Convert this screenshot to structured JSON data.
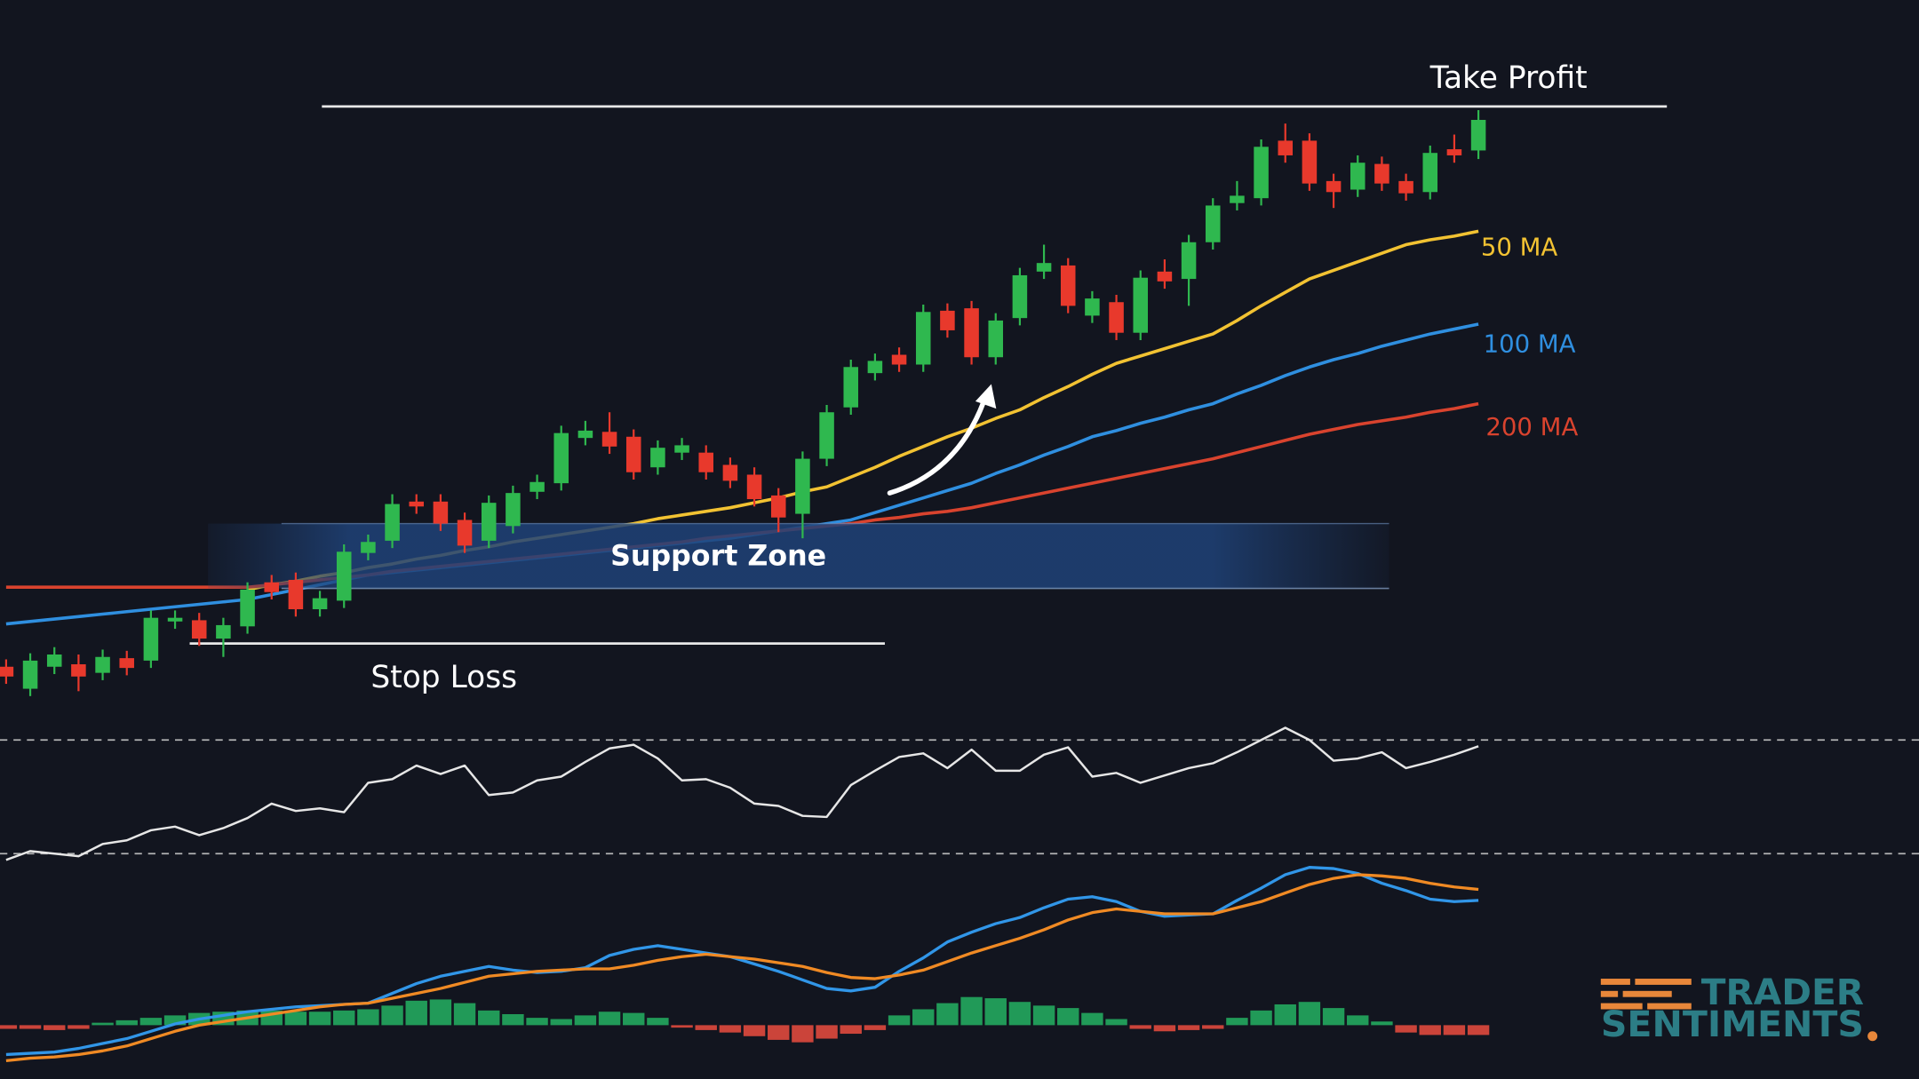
{
  "chart_data": [
    {
      "type": "candlestick",
      "categories": [
        null,
        null,
        null,
        null,
        null,
        null,
        null,
        null,
        null,
        null,
        null,
        null,
        null,
        null,
        null,
        null,
        null,
        null,
        null,
        null,
        null,
        null,
        null,
        null,
        null,
        null,
        null,
        null,
        null,
        null,
        null,
        null,
        null,
        null,
        null,
        null,
        null,
        null,
        null,
        null,
        null,
        null,
        null,
        null,
        null,
        null,
        null,
        null,
        null,
        null,
        null,
        null,
        null,
        null,
        null,
        null,
        null,
        null,
        null,
        null,
        null,
        null
      ],
      "open": [
        55,
        37,
        55,
        57,
        50,
        62,
        60,
        92,
        93,
        78,
        88,
        124,
        126,
        102,
        109,
        148,
        158,
        190,
        190,
        175,
        158,
        170,
        198,
        205,
        242,
        247,
        243,
        218,
        230,
        230,
        220,
        212,
        195,
        180,
        225,
        267,
        295,
        310,
        302,
        346,
        348,
        308,
        340,
        378,
        383,
        342,
        353,
        328,
        378,
        372,
        402,
        434,
        438,
        485,
        485,
        452,
        445,
        466,
        452,
        443,
        478,
        477
      ],
      "high": [
        61,
        66,
        71,
        65,
        69,
        68,
        101,
        101,
        99,
        95,
        124,
        130,
        132,
        117,
        155,
        163,
        196,
        196,
        196,
        181,
        195,
        203,
        212,
        252,
        256,
        263,
        249,
        240,
        242,
        236,
        226,
        218,
        201,
        231,
        269,
        306,
        311,
        316,
        351,
        352,
        354,
        344,
        381,
        400,
        389,
        362,
        359,
        379,
        388,
        408,
        438,
        452,
        486,
        499,
        491,
        458,
        473,
        472,
        458,
        481,
        490,
        510
      ],
      "low": [
        41,
        31,
        49,
        35,
        44,
        48,
        54,
        86,
        72,
        63,
        82,
        110,
        96,
        96,
        103,
        142,
        152,
        180,
        166,
        148,
        152,
        164,
        192,
        199,
        236,
        229,
        208,
        212,
        224,
        208,
        201,
        186,
        165,
        160,
        219,
        261,
        289,
        296,
        296,
        324,
        302,
        302,
        334,
        372,
        344,
        336,
        322,
        322,
        364,
        350,
        396,
        428,
        432,
        467,
        444,
        430,
        439,
        444,
        436,
        437,
        467,
        470
      ],
      "close": [
        47,
        60,
        65,
        47,
        63,
        54,
        95,
        95,
        78,
        89,
        118,
        116,
        102,
        111,
        149,
        157,
        188,
        186,
        172,
        154,
        189,
        197,
        206,
        246,
        248,
        235,
        214,
        234,
        236,
        214,
        207,
        192,
        177,
        225,
        263,
        300,
        305,
        302,
        345,
        330,
        308,
        338,
        375,
        385,
        350,
        356,
        328,
        373,
        370,
        402,
        432,
        440,
        480,
        473,
        450,
        443,
        467,
        450,
        442,
        475,
        473,
        502
      ],
      "up_color": "#2fb84f",
      "down_color": "#e8392c",
      "ylim": [
        0,
        600
      ],
      "series": [
        {
          "name": "50 MA",
          "color": "#f2c232",
          "values": [
            null,
            null,
            null,
            null,
            null,
            null,
            null,
            null,
            null,
            null,
            118,
            122,
            125,
            129,
            132,
            136,
            139,
            143,
            146,
            150,
            153,
            157,
            160,
            163,
            166,
            169,
            172,
            176,
            179,
            182,
            185,
            189,
            193,
            198,
            202,
            210,
            218,
            227,
            235,
            243,
            250,
            258,
            265,
            275,
            284,
            294,
            303,
            309,
            315,
            321,
            327,
            338,
            350,
            361,
            372,
            379,
            386,
            393,
            400,
            404,
            407,
            411
          ]
        },
        {
          "name": "100 MA",
          "color": "#2f8fe0",
          "values": [
            90,
            92,
            94,
            96,
            98,
            100,
            102,
            104,
            106,
            108,
            110,
            114,
            118,
            122,
            126,
            130,
            132,
            134,
            136,
            138,
            140,
            142,
            144,
            146,
            148,
            150,
            152,
            154,
            156,
            158,
            160,
            163,
            166,
            169,
            172,
            175,
            181,
            187,
            193,
            199,
            205,
            213,
            220,
            228,
            235,
            243,
            248,
            254,
            259,
            265,
            270,
            278,
            285,
            293,
            300,
            306,
            311,
            317,
            322,
            327,
            331,
            335
          ]
        },
        {
          "name": "200 MA",
          "color": "#d9432e",
          "values": [
            120,
            120,
            120,
            120,
            120,
            120,
            120,
            120,
            120,
            120,
            120,
            122,
            124,
            126,
            128,
            130,
            133,
            135,
            137,
            139,
            141,
            143,
            145,
            147,
            149,
            151,
            153,
            155,
            157,
            160,
            162,
            164,
            166,
            168,
            170,
            172,
            175,
            177,
            180,
            182,
            185,
            189,
            193,
            197,
            201,
            205,
            209,
            213,
            217,
            221,
            225,
            230,
            235,
            240,
            245,
            249,
            253,
            256,
            259,
            263,
            266,
            270
          ]
        }
      ],
      "levels": [
        {
          "label": "Take Profit",
          "value": 513
        },
        {
          "label": "Stop Loss",
          "value": 74
        }
      ],
      "zones": [
        {
          "label": "Support Zone",
          "range": [
            119,
            172
          ]
        }
      ]
    },
    {
      "type": "line",
      "color": "#e6e6e6",
      "ylim": [
        20,
        82
      ],
      "levels": [
        70,
        30
      ],
      "values": [
        27.8,
        30.9,
        30,
        29.1,
        33.4,
        34.7,
        38.2,
        39.5,
        36.5,
        39,
        42.5,
        47.6,
        45,
        45.9,
        44.6,
        54.9,
        56.2,
        61,
        58,
        61,
        50.6,
        51.5,
        55.8,
        57.1,
        62.3,
        67,
        68.3,
        63.5,
        55.8,
        56.2,
        53.2,
        47.6,
        46.8,
        43.3,
        42.9,
        54.1,
        59.2,
        64,
        65.3,
        60.1,
        66.6,
        59.2,
        59.2,
        64.8,
        67.4,
        57.1,
        58.4,
        54.9,
        57.5,
        60.1,
        61.8,
        65.7,
        70,
        74.3,
        70,
        62.7,
        63.5,
        65.7,
        60.1,
        62.3,
        64.8,
        67.8
      ]
    },
    {
      "type": "macd",
      "ylim": [
        -4,
        14
      ],
      "series": [
        {
          "color": "#3196e8",
          "values": [
            -2.4,
            -2.3,
            -2.2,
            -1.9,
            -1.5,
            -1.1,
            -0.5,
            0.1,
            0.5,
            0.8,
            1.1,
            1.3,
            1.5,
            1.6,
            1.7,
            1.8,
            2.6,
            3.4,
            4,
            4.4,
            4.8,
            4.5,
            4.3,
            4.4,
            4.7,
            5.7,
            6.2,
            6.5,
            6.2,
            5.9,
            5.6,
            5,
            4.4,
            3.7,
            3,
            2.8,
            3.1,
            4.4,
            5.5,
            6.8,
            7.6,
            8.3,
            8.8,
            9.6,
            10.3,
            10.5,
            10.1,
            9.3,
            8.9,
            9,
            9.1,
            10.2,
            11.2,
            12.3,
            12.9,
            12.8,
            12.4,
            11.6,
            11,
            10.3,
            10.1,
            10.2
          ]
        },
        {
          "color": "#f08a24",
          "values": [
            -2.9,
            -2.7,
            -2.6,
            -2.4,
            -2.1,
            -1.7,
            -1.1,
            -0.5,
            0,
            0.3,
            0.6,
            0.9,
            1.2,
            1.5,
            1.7,
            1.8,
            2.2,
            2.6,
            3,
            3.5,
            4,
            4.2,
            4.4,
            4.5,
            4.6,
            4.6,
            4.9,
            5.3,
            5.6,
            5.8,
            5.6,
            5.4,
            5.1,
            4.8,
            4.3,
            3.9,
            3.8,
            4.1,
            4.5,
            5.2,
            5.9,
            6.5,
            7.1,
            7.8,
            8.6,
            9.2,
            9.5,
            9.3,
            9.1,
            9.1,
            9.1,
            9.6,
            10.1,
            10.8,
            11.5,
            12,
            12.3,
            12.2,
            12,
            11.6,
            11.3,
            11.1
          ]
        }
      ],
      "histogram": {
        "up_color": "#23a95e",
        "down_color": "#e0493d",
        "values": [
          -0.3,
          -0.3,
          -0.4,
          -0.3,
          0.2,
          0.4,
          0.6,
          0.8,
          1,
          1.1,
          1.2,
          1.2,
          1.1,
          1.1,
          1.2,
          1.3,
          1.6,
          2,
          2.1,
          1.8,
          1.2,
          0.9,
          0.6,
          0.5,
          0.8,
          1.1,
          1,
          0.6,
          -0.2,
          -0.4,
          -0.6,
          -0.9,
          -1.2,
          -1.4,
          -1.1,
          -0.7,
          -0.4,
          0.8,
          1.3,
          1.8,
          2.3,
          2.2,
          1.9,
          1.6,
          1.4,
          1,
          0.5,
          -0.3,
          -0.5,
          -0.4,
          -0.3,
          0.6,
          1.2,
          1.7,
          1.9,
          1.4,
          0.8,
          0.3,
          -0.6,
          -0.8,
          -0.8,
          -0.8
        ]
      }
    }
  ],
  "brand": [
    "TRADER",
    "SENTIMENTS"
  ]
}
